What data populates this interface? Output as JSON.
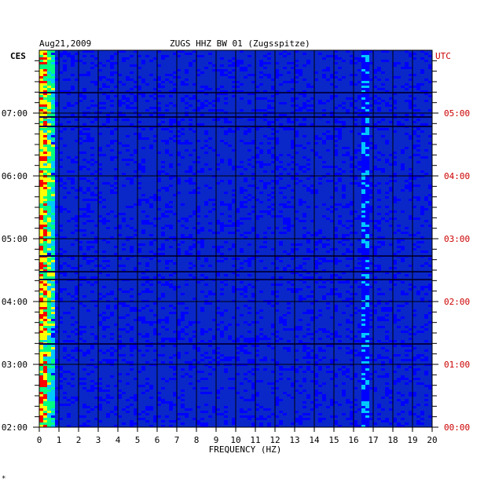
{
  "header": {
    "date": "Aug21,2009",
    "station": "ZUGS HHZ BW 01 (Zugsspitze)",
    "left_tz": "CES",
    "right_tz": "UTC"
  },
  "footer_mark": "*",
  "colors": {
    "background": "#000080",
    "field": "#0a28c8",
    "grid": "#000000",
    "utc_text": "#cc0000",
    "text": "#000000"
  },
  "chart_data": {
    "type": "heatmap",
    "title": "ZUGS HHZ BW 01 (Zugsspitze)",
    "date": "Aug21,2009",
    "xlabel": "FREQUENCY (HZ)",
    "xlim": [
      0,
      20
    ],
    "x_ticks": [
      "0",
      "1",
      "2",
      "3",
      "4",
      "5",
      "6",
      "7",
      "8",
      "9",
      "10",
      "11",
      "12",
      "13",
      "14",
      "15",
      "16",
      "17",
      "18",
      "19",
      "20"
    ],
    "y_left_label": "CES",
    "y_left_ticks": [
      "02:00",
      "03:00",
      "04:00",
      "05:00",
      "06:00",
      "07:00"
    ],
    "y_right_label": "UTC",
    "y_right_ticks": [
      "00:00",
      "01:00",
      "02:00",
      "03:00",
      "04:00",
      "05:00"
    ],
    "colorscale": [
      "#000080",
      "#0000ff",
      "#00c8ff",
      "#00ff80",
      "#ffff00",
      "#ff0000"
    ]
  }
}
